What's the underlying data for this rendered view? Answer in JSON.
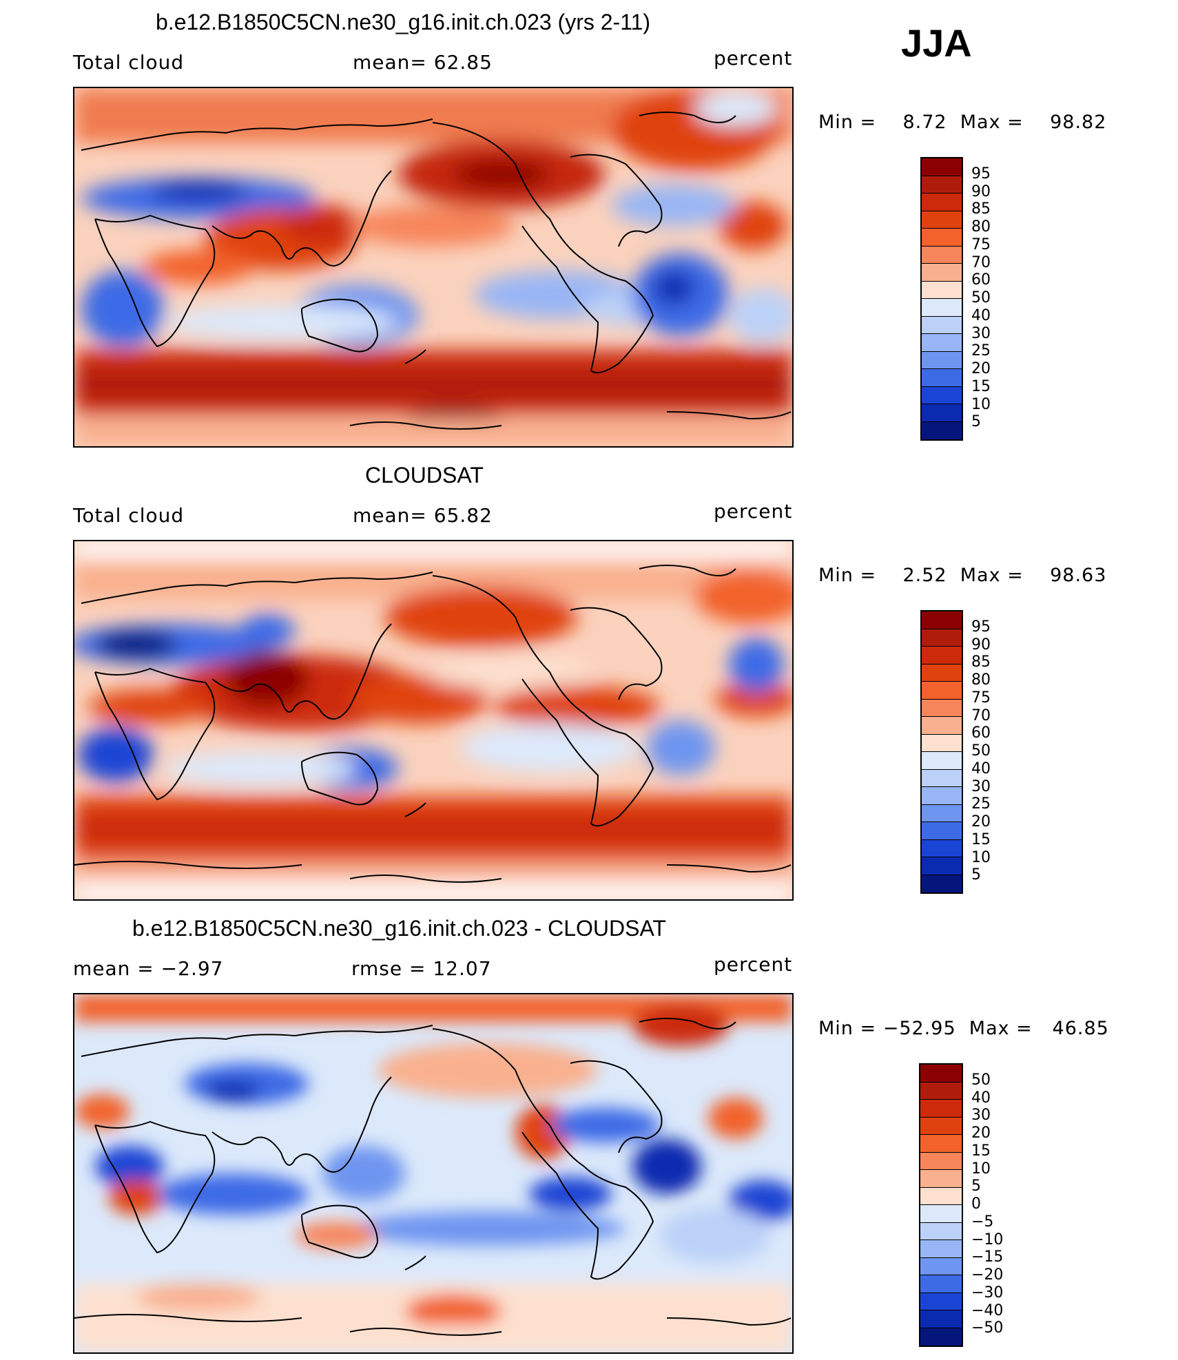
{
  "season": "JJA",
  "panels": [
    {
      "title": "b.e12.B1850C5CN.ne30_g16.init.ch.023 (yrs 2-11)",
      "left_label": "Total cloud",
      "mid_label": "mean=   62.85",
      "right_label": "percent",
      "minmax": "Min =    8.72  Max =    98.82",
      "colorbar": {
        "labels": [
          "95",
          "90",
          "85",
          "80",
          "75",
          "70",
          "60",
          "50",
          "40",
          "30",
          "25",
          "20",
          "15",
          "10",
          "5"
        ],
        "colors": [
          "#8b0000",
          "#b01c0c",
          "#cc2a0a",
          "#e0420f",
          "#f2622a",
          "#f7855a",
          "#f9b08e",
          "#fde0cf",
          "#dce9fb",
          "#bcd1f8",
          "#98b6f5",
          "#6e95f0",
          "#3d6be6",
          "#1a45d4",
          "#0a2ab0",
          "#04157c"
        ]
      }
    },
    {
      "title": "CLOUDSAT",
      "left_label": "Total cloud",
      "mid_label": "mean=   65.82",
      "right_label": "percent",
      "minmax": "Min =    2.52  Max =    98.63",
      "colorbar": {
        "labels": [
          "95",
          "90",
          "85",
          "80",
          "75",
          "70",
          "60",
          "50",
          "40",
          "30",
          "25",
          "20",
          "15",
          "10",
          "5"
        ],
        "colors": [
          "#8b0000",
          "#b01c0c",
          "#cc2a0a",
          "#e0420f",
          "#f2622a",
          "#f7855a",
          "#f9b08e",
          "#fde0cf",
          "#dce9fb",
          "#bcd1f8",
          "#98b6f5",
          "#6e95f0",
          "#3d6be6",
          "#1a45d4",
          "#0a2ab0",
          "#04157c"
        ]
      }
    },
    {
      "title": "b.e12.B1850C5CN.ne30_g16.init.ch.023 - CLOUDSAT",
      "left_label": "mean =   −2.97",
      "mid_label": "rmse =   12.07",
      "right_label": "percent",
      "minmax": "Min = −52.95  Max =   46.85",
      "colorbar": {
        "labels": [
          "50",
          "40",
          "30",
          "20",
          "15",
          "10",
          "5",
          "0",
          "−5",
          "−10",
          "−15",
          "−20",
          "−30",
          "−40",
          "−50"
        ],
        "colors": [
          "#8b0000",
          "#b01c0c",
          "#cc2a0a",
          "#e0420f",
          "#f2622a",
          "#f7855a",
          "#f9b08e",
          "#fde0cf",
          "#dce9fb",
          "#bcd1f8",
          "#98b6f5",
          "#6e95f0",
          "#3d6be6",
          "#1a45d4",
          "#0a2ab0",
          "#04157c"
        ]
      }
    }
  ]
}
